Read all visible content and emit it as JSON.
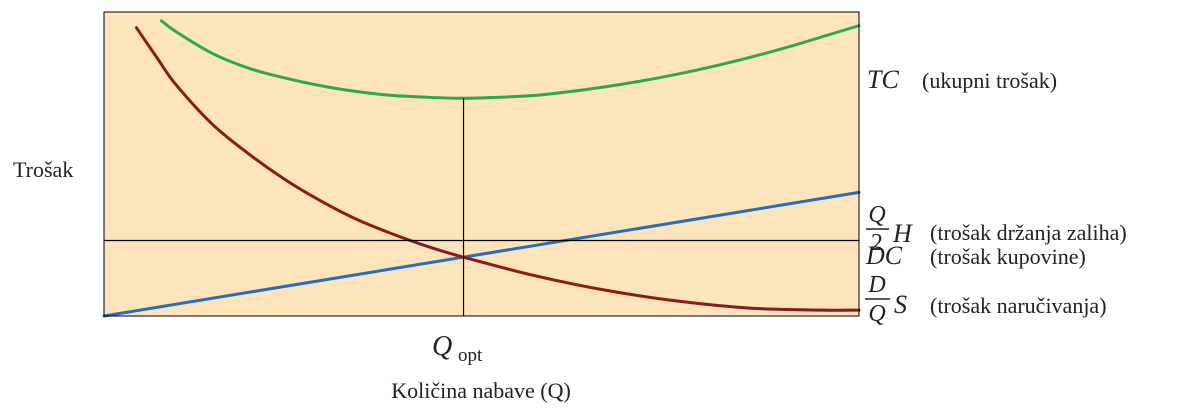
{
  "chart_data": {
    "type": "line",
    "title": "",
    "ylabel": "Trošak",
    "xlabel": "Količina nabave (Q)",
    "x_marker": {
      "symbol": "Q",
      "subscript": "opt",
      "x": 1.0
    },
    "xlim": [
      0.0,
      2.1
    ],
    "ylim": [
      0.0,
      3.1
    ],
    "colors": {
      "background": "#fce4bd",
      "frame": "#000000",
      "total_cost": "#2ea84a",
      "holding_cost": "#2a6db5",
      "ordering_cost": "#8b1a1a",
      "purchase_cost": "#000000",
      "guide": "#000000"
    },
    "series": [
      {
        "id": "total_cost",
        "symbol": "TC",
        "name": "(ukupni trošak)",
        "x": [
          0.16,
          0.2,
          0.3,
          0.4,
          0.5,
          0.6,
          0.7,
          0.8,
          0.9,
          1.0,
          1.1,
          1.2,
          1.3,
          1.4,
          1.5,
          1.6,
          1.7,
          1.8,
          1.9,
          2.0,
          2.1
        ],
        "y": [
          3.01,
          2.9,
          2.68,
          2.53,
          2.43,
          2.35,
          2.29,
          2.25,
          2.23,
          2.22,
          2.23,
          2.25,
          2.29,
          2.34,
          2.4,
          2.47,
          2.55,
          2.64,
          2.74,
          2.85,
          2.96
        ]
      },
      {
        "id": "holding_cost",
        "symbol_top": "Q",
        "symbol_bottom": "2",
        "symbol_after": "H",
        "name": "(trošak držanja zaliha)",
        "x": [
          0.0,
          2.1
        ],
        "y": [
          0.0,
          1.26
        ]
      },
      {
        "id": "ordering_cost",
        "symbol_top": "D",
        "symbol_bottom": "Q",
        "symbol_after": "S",
        "name": "(trošak naručivanja)",
        "x": [
          0.09,
          0.15,
          0.2,
          0.3,
          0.4,
          0.5,
          0.6,
          0.7,
          0.8,
          0.9,
          1.0,
          1.2,
          1.4,
          1.6,
          1.8,
          2.0,
          2.1
        ],
        "y": [
          2.94,
          2.62,
          2.36,
          1.96,
          1.66,
          1.4,
          1.18,
          0.99,
          0.84,
          0.71,
          0.6,
          0.41,
          0.26,
          0.15,
          0.08,
          0.06,
          0.06
        ]
      },
      {
        "id": "purchase_cost",
        "symbol": "DC",
        "name": "(trošak kupovine)",
        "x": [
          0.0,
          2.1
        ],
        "y": [
          0.77,
          0.77
        ]
      }
    ]
  }
}
